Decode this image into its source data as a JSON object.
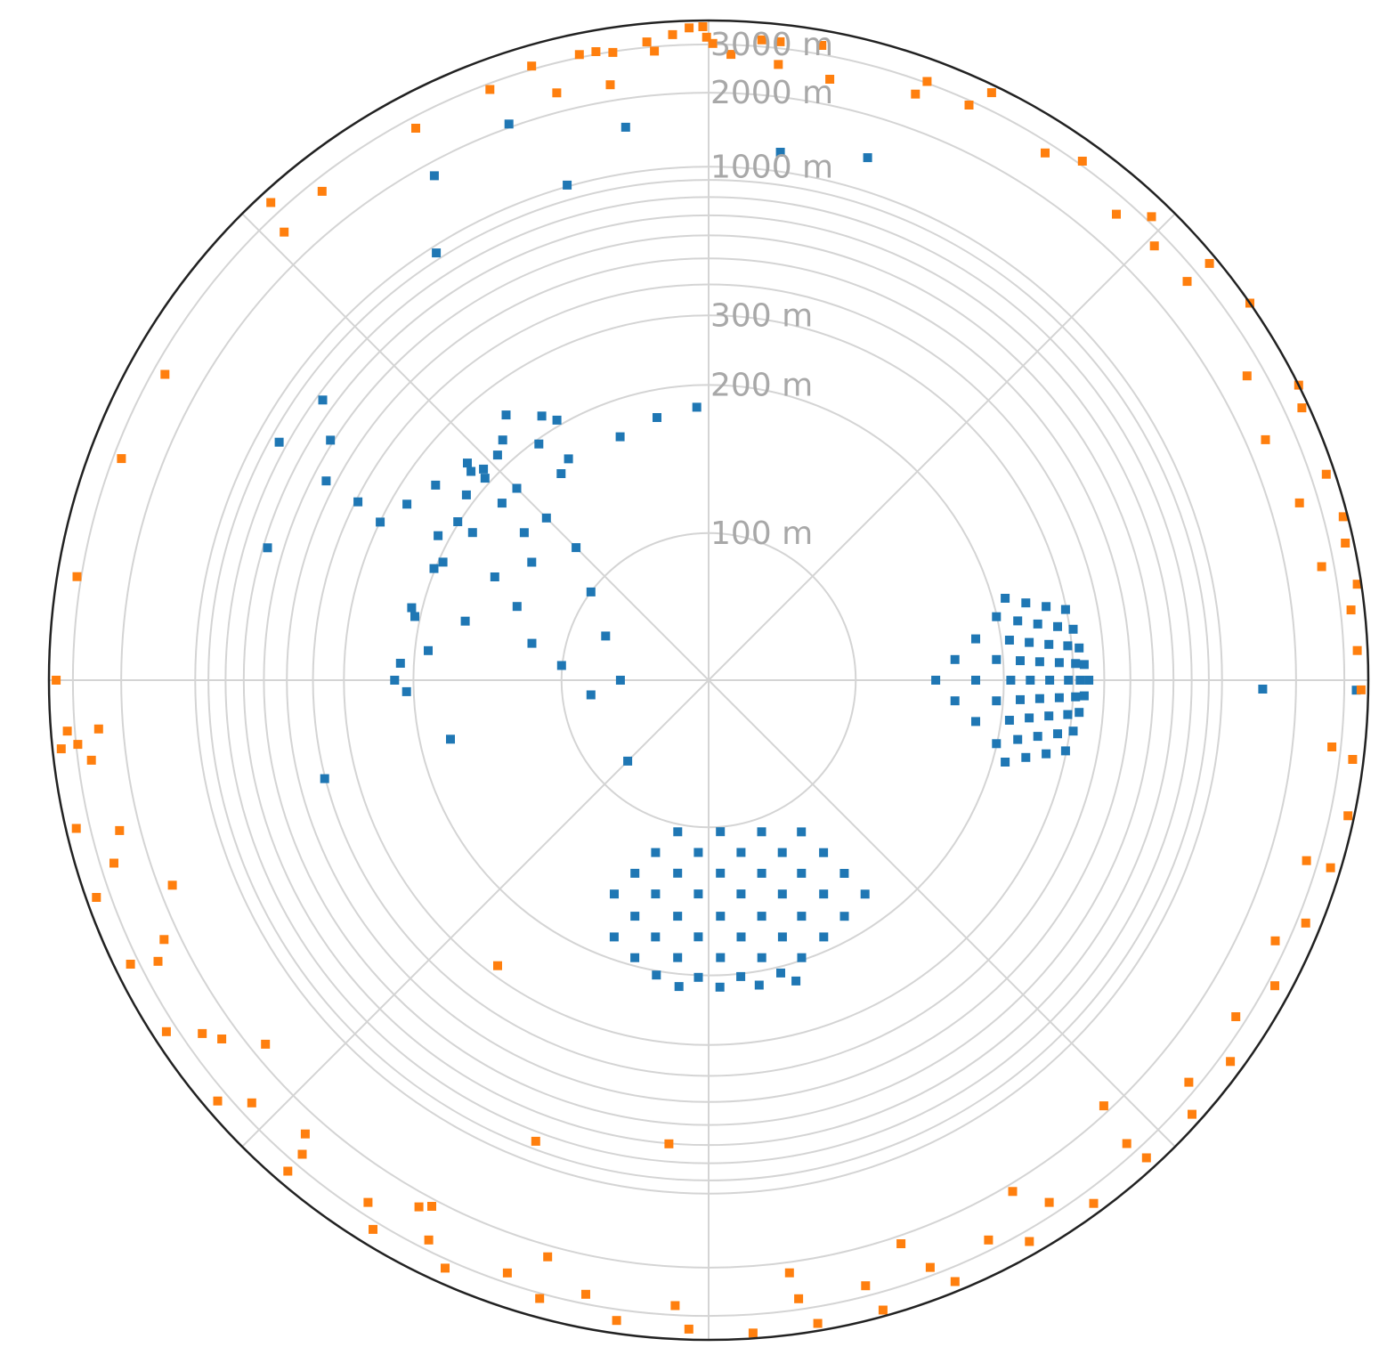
{
  "chart_data": {
    "type": "scatter",
    "projection": "polar",
    "radial_scale": "nonlinear",
    "grid": true,
    "title": "",
    "theta_grid_deg": [
      0,
      45,
      90,
      135,
      180,
      225,
      270,
      315
    ],
    "r_rings_m": [
      100,
      200,
      300,
      400,
      500,
      600,
      700,
      800,
      900,
      1000,
      2000,
      3000
    ],
    "r_tick_labels": [
      {
        "r": 100,
        "label": "100 m"
      },
      {
        "r": 200,
        "label": "200 m"
      },
      {
        "r": 300,
        "label": "300 m"
      },
      {
        "r": 1000,
        "label": "1000 m"
      },
      {
        "r": 2000,
        "label": "2000 m"
      },
      {
        "r": 3000,
        "label": "3000 m"
      }
    ],
    "r_max": 3500,
    "r_ring_mapping": {
      "r_m": [
        0,
        100,
        200,
        300,
        400,
        500,
        600,
        700,
        800,
        900,
        1000,
        2000,
        3000,
        3500
      ],
      "frac": [
        0,
        0.223,
        0.4475,
        0.5529,
        0.5998,
        0.6394,
        0.6742,
        0.7047,
        0.7323,
        0.7583,
        0.7783,
        0.8905,
        0.9637,
        1.0
      ]
    },
    "series": [
      {
        "color": "#1f77b4",
        "points_xy_m": [
          [
            210,
            58
          ],
          [
            238,
            58
          ],
          [
            266,
            58
          ],
          [
            293,
            58
          ],
          [
            195,
            43
          ],
          [
            224,
            43
          ],
          [
            252,
            43
          ],
          [
            280,
            43
          ],
          [
            308,
            43
          ],
          [
            181,
            28
          ],
          [
            210,
            28
          ],
          [
            238,
            28
          ],
          [
            266,
            28
          ],
          [
            293,
            28
          ],
          [
            322,
            28
          ],
          [
            167,
            14
          ],
          [
            195,
            14
          ],
          [
            224,
            14
          ],
          [
            252,
            14
          ],
          [
            280,
            14
          ],
          [
            308,
            14
          ],
          [
            336,
            14
          ],
          [
            154,
            0
          ],
          [
            181,
            0
          ],
          [
            210,
            0
          ],
          [
            238,
            0
          ],
          [
            266,
            0
          ],
          [
            293,
            0
          ],
          [
            322,
            0
          ],
          [
            350,
            0
          ],
          [
            167,
            -14
          ],
          [
            195,
            -14
          ],
          [
            224,
            -14
          ],
          [
            252,
            -14
          ],
          [
            280,
            -14
          ],
          [
            308,
            -14
          ],
          [
            336,
            -14
          ],
          [
            181,
            -28
          ],
          [
            210,
            -28
          ],
          [
            238,
            -28
          ],
          [
            266,
            -28
          ],
          [
            293,
            -28
          ],
          [
            322,
            -28
          ],
          [
            195,
            -43
          ],
          [
            224,
            -43
          ],
          [
            252,
            -43
          ],
          [
            280,
            -43
          ],
          [
            308,
            -43
          ],
          [
            210,
            -58
          ],
          [
            238,
            -58
          ],
          [
            266,
            -58
          ],
          [
            293,
            -58
          ],
          [
            -21,
            -103
          ],
          [
            8,
            -103
          ],
          [
            36,
            -103
          ],
          [
            63,
            -103
          ],
          [
            -36,
            -117
          ],
          [
            -7,
            -117
          ],
          [
            22,
            -117
          ],
          [
            50,
            -117
          ],
          [
            78,
            -117
          ],
          [
            -50,
            -131
          ],
          [
            -21,
            -131
          ],
          [
            8,
            -131
          ],
          [
            36,
            -131
          ],
          [
            63,
            -131
          ],
          [
            92,
            -131
          ],
          [
            -64,
            -145
          ],
          [
            -36,
            -145
          ],
          [
            -7,
            -145
          ],
          [
            22,
            -145
          ],
          [
            50,
            -145
          ],
          [
            78,
            -145
          ],
          [
            106,
            -145
          ],
          [
            -50,
            -160
          ],
          [
            -21,
            -160
          ],
          [
            8,
            -160
          ],
          [
            36,
            -160
          ],
          [
            63,
            -160
          ],
          [
            92,
            -160
          ],
          [
            -64,
            -174
          ],
          [
            -36,
            -174
          ],
          [
            -7,
            -174
          ],
          [
            22,
            -174
          ],
          [
            50,
            -174
          ],
          [
            78,
            -174
          ],
          [
            -50,
            -188
          ],
          [
            -21,
            -188
          ],
          [
            8,
            -188
          ],
          [
            36,
            -188
          ],
          [
            63,
            -188
          ],
          [
            -36,
            -203
          ],
          [
            -7,
            -203
          ],
          [
            22,
            -203
          ],
          [
            50,
            -203
          ],
          [
            -21,
            -217
          ],
          [
            8,
            -217
          ],
          [
            36,
            -217
          ],
          [
            63,
            -217
          ],
          [
            -155,
            203
          ],
          [
            -173,
            152
          ],
          [
            -191,
            102
          ],
          [
            -209,
            51
          ],
          [
            -227,
            0
          ],
          [
            -155,
            140
          ],
          [
            -171,
            108
          ],
          [
            -187,
            76
          ],
          [
            -203,
            44
          ],
          [
            -219,
            12
          ],
          [
            -120,
            190
          ],
          [
            -150,
            175
          ],
          [
            -180,
            162
          ],
          [
            -210,
            150
          ],
          [
            -240,
            140
          ],
          [
            -270,
            130
          ],
          [
            -140,
            120
          ],
          [
            -160,
            100
          ],
          [
            -180,
            80
          ],
          [
            -100,
            140
          ],
          [
            -110,
            110
          ],
          [
            -120,
            80
          ],
          [
            -130,
            50
          ],
          [
            -90,
            90
          ],
          [
            -80,
            60
          ],
          [
            -70,
            30
          ],
          [
            -60,
            0
          ],
          [
            -130,
            130
          ],
          [
            -150,
            160
          ],
          [
            -160,
            150
          ],
          [
            -170,
            130
          ],
          [
            -115,
            160
          ],
          [
            -105,
            180
          ],
          [
            -95,
            150
          ],
          [
            -125,
            100
          ],
          [
            -145,
            70
          ],
          [
            -165,
            40
          ],
          [
            -190,
            20
          ],
          [
            -210,
            -8
          ],
          [
            -120,
            25
          ],
          [
            -100,
            10
          ],
          [
            -80,
            -10
          ],
          [
            -55,
            -55
          ],
          [
            -175,
            -40
          ],
          [
            -60,
            165
          ],
          [
            -35,
            178
          ],
          [
            -8,
            185
          ],
          [
            -350,
            178
          ],
          [
            -480,
            250
          ],
          [
            -390,
            -100
          ],
          [
            -650,
            195
          ],
          [
            -740,
            410
          ],
          [
            -620,
            450
          ],
          [
            -510,
            800
          ],
          [
            -520,
            330
          ],
          [
            -280,
            980
          ],
          [
            -700,
            1950
          ],
          [
            -870,
            1600
          ],
          [
            3250,
            -50
          ],
          [
            1550,
            -25
          ],
          [
            170,
            1250
          ],
          [
            420,
            1380
          ],
          [
            -240,
            1600
          ]
        ]
      },
      {
        "color": "#ff7f0e",
        "points_xy_m": [
          [
            -380,
            2300
          ],
          [
            -600,
            2320
          ],
          [
            -540,
            3010
          ],
          [
            -300,
            3100
          ],
          [
            -180,
            3220
          ],
          [
            -100,
            3350
          ],
          [
            -30,
            3370
          ],
          [
            -10,
            3150
          ],
          [
            20,
            3020
          ],
          [
            260,
            3130
          ],
          [
            350,
            3120
          ],
          [
            560,
            3140
          ],
          [
            1040,
            2850
          ],
          [
            1450,
            3010
          ],
          [
            1800,
            2500
          ],
          [
            1950,
            1900
          ],
          [
            2150,
            2250
          ],
          [
            2560,
            2130
          ],
          [
            2900,
            2020
          ],
          [
            3200,
            1600
          ],
          [
            3050,
            1400
          ],
          [
            3150,
            1050
          ],
          [
            3300,
            850
          ],
          [
            3250,
            700
          ],
          [
            3380,
            500
          ],
          [
            3200,
            350
          ],
          [
            3280,
            150
          ],
          [
            3350,
            -50
          ],
          [
            3250,
            -400
          ],
          [
            3300,
            -700
          ],
          [
            3150,
            -950
          ],
          [
            2950,
            -1200
          ],
          [
            2780,
            -1500
          ],
          [
            2600,
            -1900
          ],
          [
            2450,
            -2200
          ],
          [
            2200,
            -2400
          ],
          [
            1950,
            -2650
          ],
          [
            1600,
            -2800
          ],
          [
            1250,
            -3050
          ],
          [
            900,
            -3250
          ],
          [
            560,
            -3300
          ],
          [
            230,
            -3380
          ],
          [
            -100,
            -3280
          ],
          [
            -460,
            -3200
          ],
          [
            -820,
            -3000
          ],
          [
            -1300,
            -2900
          ],
          [
            -1650,
            -2700
          ],
          [
            -2100,
            -2450
          ],
          [
            -2450,
            -2100
          ],
          [
            -2700,
            -1750
          ],
          [
            -2850,
            -1400
          ],
          [
            -3100,
            -1100
          ],
          [
            -3200,
            -750
          ],
          [
            -3300,
            -350
          ],
          [
            -3350,
            0
          ],
          [
            -3150,
            -250
          ],
          [
            -2950,
            -300
          ],
          [
            -3050,
            500
          ],
          [
            -2650,
            1000
          ],
          [
            -2400,
            1350
          ],
          [
            -1800,
            1900
          ],
          [
            -2200,
            2400
          ],
          [
            -1700,
            2150
          ],
          [
            -1300,
            2450
          ],
          [
            -1000,
            2700
          ],
          [
            -850,
            2950
          ],
          [
            -620,
            3000
          ],
          [
            -450,
            2950
          ],
          [
            -250,
            2900
          ],
          [
            100,
            2800
          ],
          [
            300,
            2650
          ],
          [
            500,
            2480
          ],
          [
            900,
            2550
          ],
          [
            1200,
            2650
          ],
          [
            1500,
            2350
          ],
          [
            1750,
            2000
          ],
          [
            2100,
            1750
          ],
          [
            2300,
            1300
          ],
          [
            2200,
            950
          ],
          [
            2500,
            750
          ],
          [
            2700,
            500
          ],
          [
            2800,
            -300
          ],
          [
            2650,
            -800
          ],
          [
            2500,
            -1150
          ],
          [
            2350,
            -1500
          ],
          [
            2150,
            -1800
          ],
          [
            1850,
            -2050
          ],
          [
            1500,
            -2300
          ],
          [
            1250,
            -2500
          ],
          [
            1000,
            -2650
          ],
          [
            700,
            -2700
          ],
          [
            400,
            -2750
          ],
          [
            -150,
            -2800
          ],
          [
            -550,
            -2750
          ],
          [
            -900,
            -2650
          ],
          [
            -1250,
            -2500
          ],
          [
            -1500,
            -2300
          ],
          [
            -1800,
            -2100
          ],
          [
            -2000,
            -1850
          ],
          [
            -2150,
            -1500
          ],
          [
            -2350,
            -1200
          ],
          [
            -2600,
            -800
          ],
          [
            -2700,
            -350
          ],
          [
            -2500,
            -200
          ],
          [
            -2350,
            -600
          ],
          [
            -2100,
            -1000
          ],
          [
            -1900,
            -1400
          ],
          [
            -1600,
            -1800
          ],
          [
            -1100,
            -2000
          ],
          [
            -600,
            -2150
          ],
          [
            300,
            -2200
          ],
          [
            700,
            -2050
          ],
          [
            1100,
            -1850
          ],
          [
            -300,
            -800
          ],
          [
            -170,
            -230
          ],
          [
            -60,
            -700
          ],
          [
            -1000,
            -1900
          ],
          [
            -1700,
            -650
          ],
          [
            -1400,
            -1150
          ],
          [
            1300,
            -1400
          ]
        ]
      }
    ]
  }
}
